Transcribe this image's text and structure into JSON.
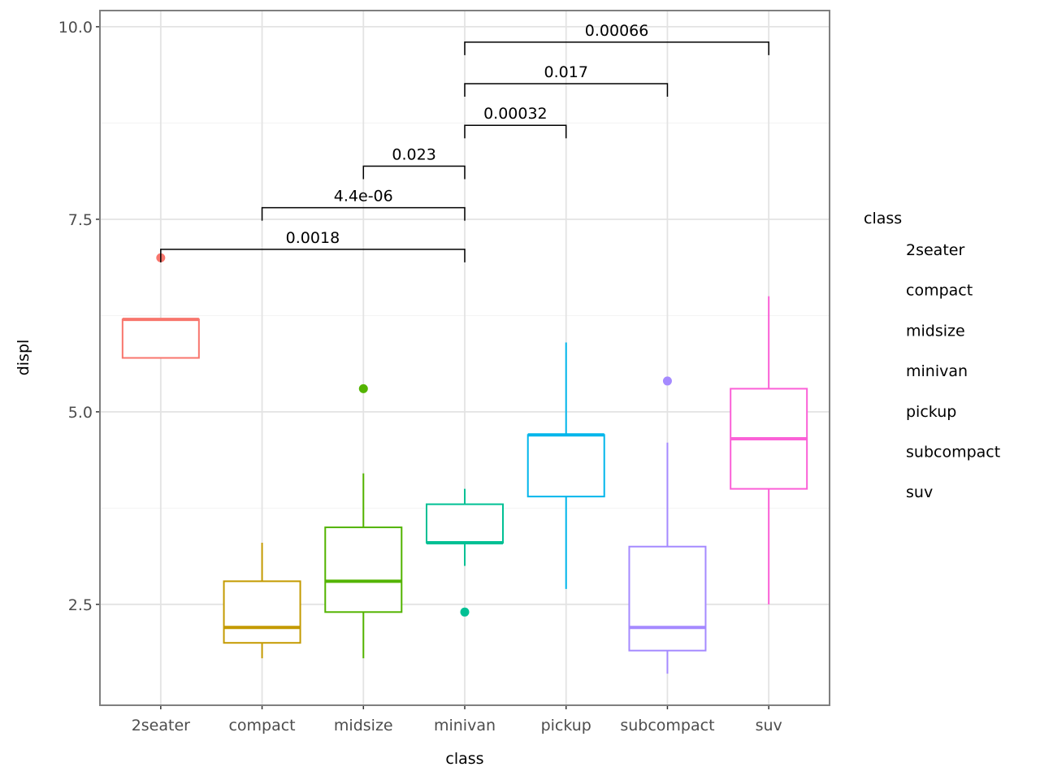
{
  "chart_data": {
    "type": "boxplot",
    "xlabel": "class",
    "ylabel": "displ",
    "ylim": [
      1.19,
      10.21
    ],
    "yticks": [
      "2.5",
      "5.0",
      "7.5",
      "10.0"
    ],
    "ytick_values": [
      2.5,
      5.0,
      7.5,
      10.0
    ],
    "grid": true,
    "categories": [
      "2seater",
      "compact",
      "midsize",
      "minivan",
      "pickup",
      "subcompact",
      "suv"
    ],
    "colors": [
      "#F8766D",
      "#C49A00",
      "#53B400",
      "#00C094",
      "#00B6EB",
      "#A58AFF",
      "#FB61D7"
    ],
    "boxes": [
      {
        "min": 5.7,
        "q1": 5.7,
        "median": 6.2,
        "q3": 6.2,
        "max": 6.2,
        "outliers": [
          7.0
        ]
      },
      {
        "min": 1.8,
        "q1": 2.0,
        "median": 2.2,
        "q3": 2.8,
        "max": 3.3,
        "outliers": []
      },
      {
        "min": 1.8,
        "q1": 2.4,
        "median": 2.8,
        "q3": 3.5,
        "max": 4.2,
        "outliers": [
          5.3
        ]
      },
      {
        "min": 3.0,
        "q1": 3.3,
        "median": 3.3,
        "q3": 3.8,
        "max": 4.0,
        "outliers": [
          2.4
        ]
      },
      {
        "min": 2.7,
        "q1": 3.9,
        "median": 4.7,
        "q3": 4.7,
        "max": 5.9,
        "outliers": []
      },
      {
        "min": 1.6,
        "q1": 1.9,
        "median": 2.2,
        "q3": 3.25,
        "max": 4.6,
        "outliers": [
          5.4
        ]
      },
      {
        "min": 2.5,
        "q1": 4.0,
        "median": 4.65,
        "q3": 5.3,
        "max": 6.5,
        "outliers": []
      }
    ],
    "comparisons": [
      {
        "from": "2seater",
        "to": "minivan",
        "label": "0.0018",
        "y": 7.11
      },
      {
        "from": "compact",
        "to": "minivan",
        "label": "4.4e-06",
        "y": 7.65
      },
      {
        "from": "midsize",
        "to": "minivan",
        "label": "0.023",
        "y": 8.19
      },
      {
        "from": "minivan",
        "to": "pickup",
        "label": "0.00032",
        "y": 8.72
      },
      {
        "from": "minivan",
        "to": "subcompact",
        "label": "0.017",
        "y": 9.26
      },
      {
        "from": "minivan",
        "to": "suv",
        "label": "0.00066",
        "y": 9.8
      }
    ],
    "legend": {
      "title": "class",
      "position": "right",
      "entries": [
        "2seater",
        "compact",
        "midsize",
        "minivan",
        "pickup",
        "subcompact",
        "suv"
      ]
    }
  }
}
